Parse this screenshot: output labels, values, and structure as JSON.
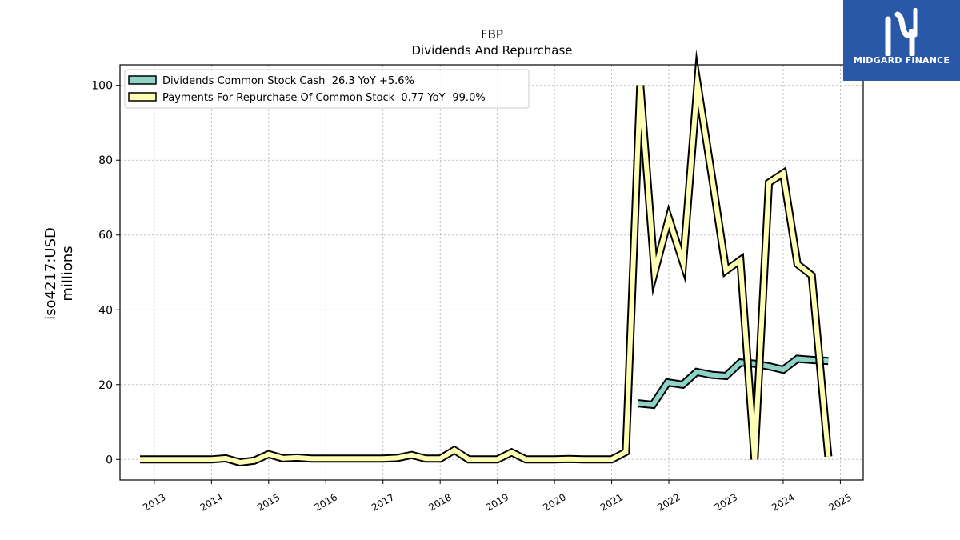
{
  "logo": {
    "text": "MIDGARD FINANCE",
    "bg": "#2a58a8"
  },
  "chart_data": {
    "type": "line",
    "title": "FBP",
    "subtitle": "Dividends And Repurchase",
    "ylabel": "iso4217:USD",
    "ylabel2": "millions",
    "ylim": [
      -5.5,
      105.5
    ],
    "xlim": [
      2012.4,
      2025.4
    ],
    "yticks": [
      0,
      20,
      40,
      60,
      80,
      100
    ],
    "xticks": [
      2013,
      2014,
      2015,
      2016,
      2017,
      2018,
      2019,
      2020,
      2021,
      2022,
      2023,
      2024,
      2025
    ],
    "grid": true,
    "legend_position": "top-left",
    "series": [
      {
        "name": "Dividends Common Stock Cash  26.3 YoY +5.6%",
        "color": "#8dd3c7",
        "x": [
          2021.46,
          2021.72,
          2021.98,
          2022.24,
          2022.49,
          2022.75,
          2023.0,
          2023.25,
          2023.5,
          2023.75,
          2024.0,
          2024.25,
          2024.5,
          2024.79
        ],
        "y": [
          15.0,
          14.6,
          20.6,
          20.0,
          23.4,
          22.6,
          22.3,
          25.9,
          25.6,
          24.9,
          24.0,
          26.9,
          26.6,
          26.3
        ]
      },
      {
        "name": "Payments For Repurchase Of Common Stock  0.77 YoY -99.0%",
        "color": "#ffffb3",
        "x": [
          2012.75,
          2013.0,
          2013.5,
          2014.0,
          2014.25,
          2014.5,
          2014.75,
          2015.0,
          2015.25,
          2015.5,
          2015.75,
          2016.0,
          2016.5,
          2017.0,
          2017.25,
          2017.5,
          2017.75,
          2018.0,
          2018.25,
          2018.5,
          2019.0,
          2019.25,
          2019.5,
          2020.0,
          2020.25,
          2020.5,
          2021.0,
          2021.25,
          2021.5,
          2021.75,
          2022.0,
          2022.25,
          2022.5,
          2022.75,
          2023.0,
          2023.25,
          2023.5,
          2023.75,
          2024.0,
          2024.25,
          2024.5,
          2024.79
        ],
        "y": [
          0.0,
          0.0,
          0.0,
          0.0,
          0.3,
          -0.8,
          -0.3,
          1.4,
          0.3,
          0.5,
          0.2,
          0.2,
          0.2,
          0.2,
          0.4,
          1.2,
          0.2,
          0.2,
          2.5,
          0.0,
          0.0,
          1.9,
          0.0,
          0.0,
          0.1,
          0.0,
          0.0,
          2.0,
          100.0,
          50.0,
          64.5,
          52.5,
          100.5,
          76.0,
          50.5,
          53.3,
          0.0,
          74.0,
          76.5,
          52.2,
          49.2,
          0.77
        ]
      }
    ]
  }
}
